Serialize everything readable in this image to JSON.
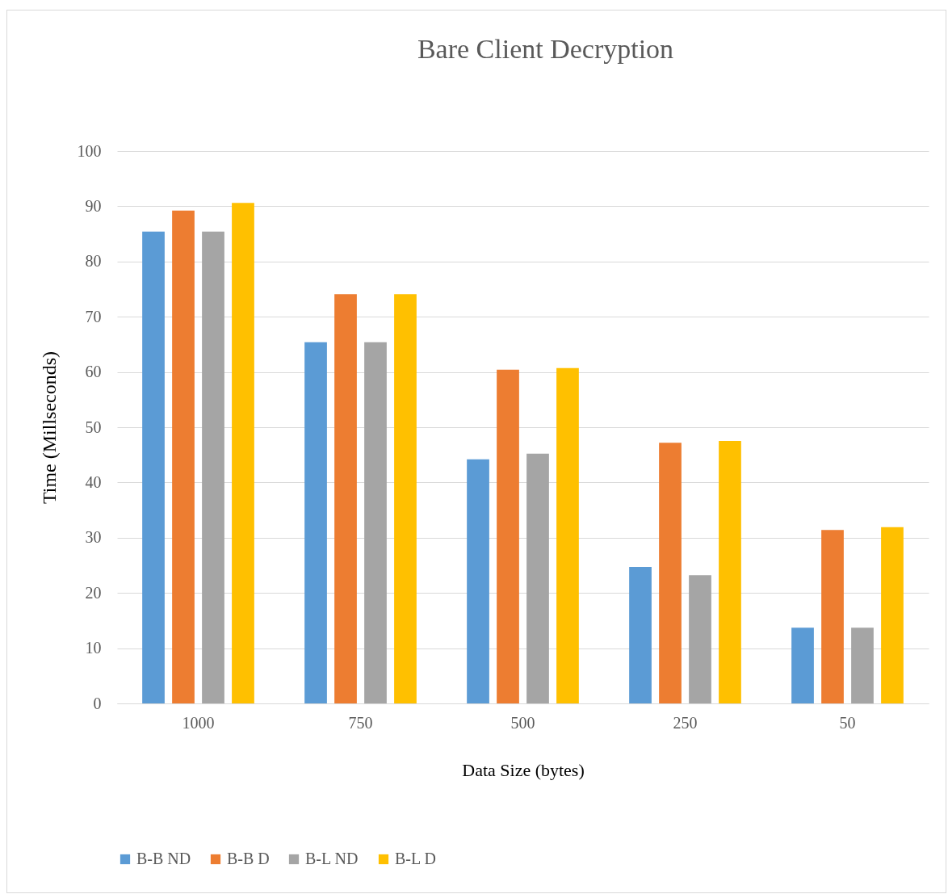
{
  "chart_data": {
    "type": "bar",
    "title": "Bare Client Decryption",
    "xlabel": "Data Size (bytes)",
    "ylabel": "Time (Millseconds)",
    "categories": [
      "1000",
      "750",
      "500",
      "250",
      "50"
    ],
    "series": [
      {
        "name": "B-B ND",
        "color": "#5b9bd5",
        "values": [
          85.4,
          65.4,
          44.2,
          24.7,
          13.7
        ]
      },
      {
        "name": "B-B D",
        "color": "#ed7d31",
        "values": [
          89.2,
          74.1,
          60.4,
          47.2,
          31.4
        ]
      },
      {
        "name": "B-L ND",
        "color": "#a5a5a5",
        "values": [
          85.4,
          65.4,
          45.2,
          23.2,
          13.7
        ]
      },
      {
        "name": "B-L D",
        "color": "#ffc000",
        "values": [
          90.6,
          74.1,
          60.7,
          47.5,
          31.9
        ]
      }
    ],
    "ylim": [
      0,
      100
    ],
    "yticks": [
      0,
      10,
      20,
      30,
      40,
      50,
      60,
      70,
      80,
      90,
      100
    ],
    "grid": "y",
    "legend": "bottom"
  }
}
